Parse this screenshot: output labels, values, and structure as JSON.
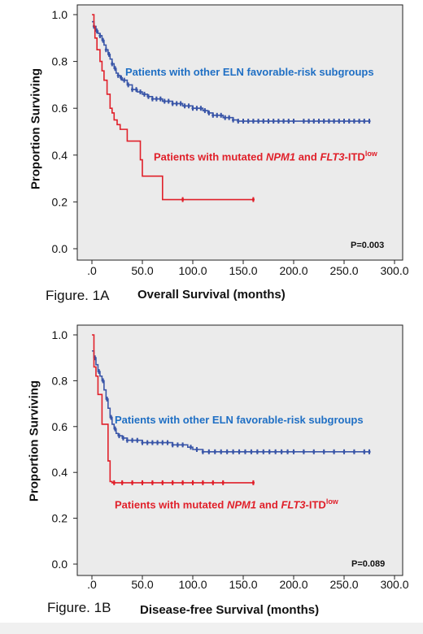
{
  "chart_data": [
    {
      "type": "line",
      "figure_label": "Figure. 1A",
      "xlabel": "Overall Survival (months)",
      "ylabel": "Proportion Surviving",
      "xlim": [
        0,
        300
      ],
      "ylim": [
        0,
        1.0
      ],
      "xticks": [
        ".0",
        "50.0",
        "100.0",
        "150.0",
        "200.0",
        "250.0",
        "300.0"
      ],
      "yticks": [
        "0.0",
        "0.2",
        "0.4",
        "0.6",
        "0.8",
        "1.0"
      ],
      "p_value": "P=0.003",
      "annotation_blue": "Patients with other ELN favorable-risk subgroups",
      "annotation_red": {
        "pre": "Patients with mutated ",
        "i1": "NPM1",
        "mid": " and ",
        "i2": "FLT3",
        "post": "-ITD",
        "sup": "low"
      },
      "colors": {
        "blue": "#3a56a8",
        "red": "#e0202a",
        "plot_bg": "#ebebeb"
      },
      "series": [
        {
          "color": "#3a56a8",
          "x": [
            0,
            2,
            4,
            6,
            8,
            10,
            12,
            14,
            16,
            18,
            20,
            22,
            24,
            26,
            28,
            30,
            35,
            40,
            45,
            50,
            55,
            60,
            70,
            80,
            90,
            100,
            110,
            115,
            120,
            130,
            140,
            145,
            150,
            160,
            170,
            180,
            200,
            220,
            240,
            260,
            275
          ],
          "y": [
            0.97,
            0.95,
            0.93,
            0.92,
            0.91,
            0.89,
            0.87,
            0.85,
            0.83,
            0.81,
            0.79,
            0.77,
            0.75,
            0.74,
            0.73,
            0.72,
            0.7,
            0.68,
            0.67,
            0.66,
            0.65,
            0.64,
            0.63,
            0.62,
            0.61,
            0.6,
            0.59,
            0.58,
            0.57,
            0.56,
            0.55,
            0.545,
            0.545,
            0.545,
            0.545,
            0.545,
            0.545,
            0.545,
            0.545,
            0.545,
            0.545
          ],
          "censored_x": [
            2,
            5,
            8,
            11,
            14,
            17,
            20,
            23,
            26,
            29,
            32,
            36,
            40,
            44,
            48,
            52,
            56,
            60,
            64,
            68,
            72,
            76,
            80,
            84,
            88,
            92,
            96,
            100,
            104,
            108,
            112,
            116,
            120,
            124,
            128,
            132,
            136,
            140,
            145,
            150,
            155,
            160,
            165,
            170,
            175,
            180,
            185,
            190,
            195,
            200,
            210,
            215,
            220,
            225,
            230,
            235,
            240,
            245,
            250,
            255,
            260,
            265,
            270,
            275
          ]
        },
        {
          "color": "#e0202a",
          "x": [
            0,
            2,
            3,
            5,
            8,
            10,
            12,
            15,
            18,
            20,
            22,
            25,
            28,
            30,
            35,
            40,
            45,
            48,
            50,
            55,
            60,
            65,
            70,
            80,
            100,
            120,
            140,
            160
          ],
          "y": [
            1.0,
            0.95,
            0.9,
            0.85,
            0.8,
            0.76,
            0.72,
            0.66,
            0.6,
            0.58,
            0.55,
            0.53,
            0.51,
            0.51,
            0.46,
            0.46,
            0.46,
            0.38,
            0.31,
            0.31,
            0.31,
            0.31,
            0.21,
            0.21,
            0.21,
            0.21,
            0.21,
            0.21
          ],
          "censored_x": [
            90,
            160
          ]
        }
      ]
    },
    {
      "type": "line",
      "figure_label": "Figure. 1B",
      "xlabel": "Disease-free Survival (months)",
      "ylabel": "Proportion Surviving",
      "xlim": [
        0,
        300
      ],
      "ylim": [
        0,
        1.0
      ],
      "xticks": [
        ".0",
        "50.0",
        "100.0",
        "150.0",
        "200.0",
        "250.0",
        "300.0"
      ],
      "yticks": [
        "0.0",
        "0.2",
        "0.4",
        "0.6",
        "0.8",
        "1.0"
      ],
      "p_value": "P=0.089",
      "annotation_blue": "Patients with other ELN favorable-risk subgroups",
      "annotation_red": {
        "pre": "Patients with mutated ",
        "i1": "NPM1",
        "mid": " and ",
        "i2": "FLT3",
        "post": "-ITD",
        "sup": "low"
      },
      "colors": {
        "blue": "#3a56a8",
        "red": "#e0202a",
        "plot_bg": "#ebebeb"
      },
      "series": [
        {
          "color": "#3a56a8",
          "x": [
            0,
            2,
            4,
            6,
            8,
            10,
            12,
            14,
            16,
            18,
            20,
            22,
            24,
            26,
            30,
            35,
            40,
            50,
            60,
            70,
            80,
            90,
            95,
            100,
            110,
            130,
            150,
            180,
            200,
            230,
            250,
            275
          ],
          "y": [
            0.93,
            0.9,
            0.87,
            0.84,
            0.82,
            0.8,
            0.76,
            0.72,
            0.68,
            0.64,
            0.61,
            0.59,
            0.57,
            0.56,
            0.55,
            0.54,
            0.54,
            0.53,
            0.53,
            0.53,
            0.52,
            0.52,
            0.51,
            0.5,
            0.49,
            0.49,
            0.49,
            0.49,
            0.49,
            0.49,
            0.49,
            0.49
          ],
          "censored_x": [
            3,
            7,
            11,
            15,
            19,
            23,
            27,
            31,
            35,
            40,
            45,
            50,
            55,
            60,
            65,
            70,
            75,
            80,
            85,
            90,
            98,
            104,
            110,
            116,
            122,
            128,
            134,
            140,
            146,
            152,
            158,
            164,
            170,
            176,
            182,
            188,
            194,
            200,
            210,
            220,
            230,
            240,
            250,
            260,
            270,
            275
          ]
        },
        {
          "color": "#e0202a",
          "x": [
            0,
            2,
            4,
            6,
            10,
            12,
            14,
            16,
            18,
            20,
            25,
            40,
            60,
            100,
            130,
            160
          ],
          "y": [
            1.0,
            0.86,
            0.82,
            0.74,
            0.61,
            0.61,
            0.61,
            0.45,
            0.36,
            0.355,
            0.355,
            0.355,
            0.355,
            0.355,
            0.355,
            0.355
          ],
          "censored_x": [
            22,
            30,
            40,
            50,
            60,
            70,
            80,
            90,
            100,
            110,
            120,
            130,
            160
          ]
        }
      ]
    }
  ]
}
